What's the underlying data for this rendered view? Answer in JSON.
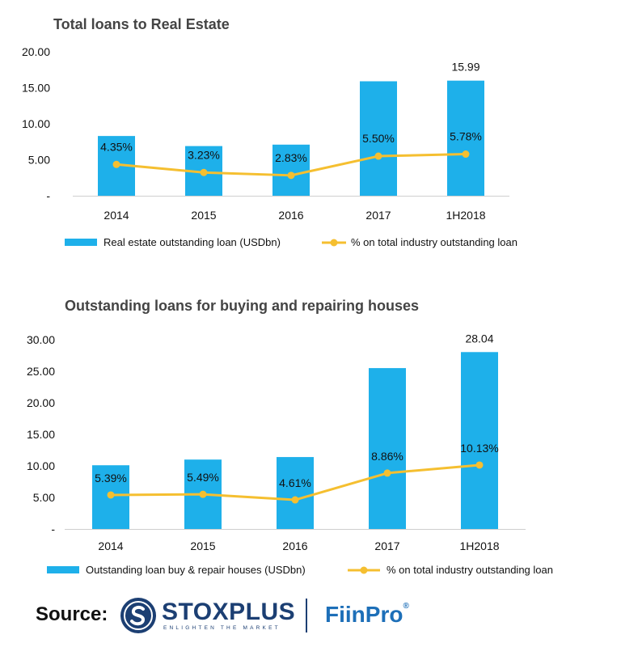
{
  "chart_data": [
    {
      "type": "bar",
      "title": "Total loans to Real Estate",
      "categories": [
        "2014",
        "2015",
        "2016",
        "2017",
        "1H2018"
      ],
      "y_ticks": [
        "-",
        "5.00",
        "10.00",
        "15.00",
        "20.00"
      ],
      "ylim": [
        0,
        20
      ],
      "grid": false,
      "series": [
        {
          "name": "Real estate outstanding loan (USDbn)",
          "kind": "bar",
          "color": "#1eb0ea",
          "values": [
            8.3,
            6.9,
            7.1,
            15.9,
            15.99
          ]
        },
        {
          "name": "% on total industry outstanding loan",
          "kind": "line",
          "color": "#f5bf30",
          "values": [
            4.35,
            3.23,
            2.83,
            5.5,
            5.78
          ],
          "labels": [
            "4.35%",
            "3.23%",
            "2.83%",
            "5.50%",
            "5.78%"
          ]
        }
      ],
      "bar_value_labels": [
        "",
        "",
        "",
        "",
        "15.99"
      ],
      "legend": "bottom"
    },
    {
      "type": "bar",
      "title": "Outstanding loans for buying and repairing houses",
      "categories": [
        "2014",
        "2015",
        "2016",
        "2017",
        "1H2018"
      ],
      "y_ticks": [
        "-",
        "5.00",
        "10.00",
        "15.00",
        "20.00",
        "25.00",
        "30.00"
      ],
      "ylim": [
        0,
        30
      ],
      "grid": false,
      "series": [
        {
          "name": "Outstanding loan buy & repair houses (USDbn)",
          "kind": "bar",
          "color": "#1eb0ea",
          "values": [
            10.1,
            11.0,
            11.4,
            25.5,
            28.04
          ]
        },
        {
          "name": "% on total industry outstanding loan",
          "kind": "line",
          "color": "#f5bf30",
          "values": [
            5.39,
            5.49,
            4.61,
            8.86,
            10.13
          ],
          "labels": [
            "5.39%",
            "5.49%",
            "4.61%",
            "8.86%",
            "10.13%"
          ]
        }
      ],
      "bar_value_labels": [
        "",
        "",
        "",
        "",
        "28.04"
      ],
      "legend": "bottom"
    }
  ],
  "source": {
    "label": "Source:",
    "stoxplus_name": "STOXPLUS",
    "stoxplus_tagline": "ENLIGHTEN THE MARKET",
    "fiinpro_name": "FiinPro",
    "fiinpro_mark": "®"
  }
}
